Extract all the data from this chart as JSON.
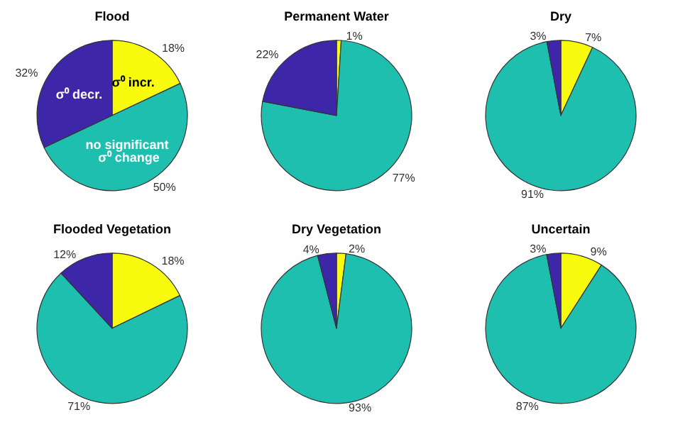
{
  "chart_data": [
    {
      "type": "pie",
      "title": "Flood",
      "categories": [
        "σ⁰ incr.",
        "no significant σ⁰ change",
        "σ⁰ decr."
      ],
      "values": [
        18,
        50,
        32
      ],
      "value_labels": [
        "18%",
        "50%",
        "32%"
      ],
      "colors": [
        "#f9fb0e",
        "#1fbfb0",
        "#3e26a8"
      ]
    },
    {
      "type": "pie",
      "title": "Permanent Water",
      "categories": [
        null,
        null,
        null
      ],
      "values": [
        1,
        77,
        22
      ],
      "value_labels": [
        "1%",
        "77%",
        "22%"
      ],
      "colors": [
        "#f9fb0e",
        "#1fbfb0",
        "#3e26a8"
      ]
    },
    {
      "type": "pie",
      "title": "Dry",
      "categories": [
        null,
        null,
        null
      ],
      "values": [
        7,
        91,
        3
      ],
      "value_labels": [
        "7%",
        "91%",
        "3%"
      ],
      "colors": [
        "#f9fb0e",
        "#1fbfb0",
        "#3e26a8"
      ]
    },
    {
      "type": "pie",
      "title": "Flooded Vegetation",
      "categories": [
        null,
        null,
        null
      ],
      "values": [
        18,
        71,
        12
      ],
      "value_labels": [
        "18%",
        "71%",
        "12%"
      ],
      "colors": [
        "#f9fb0e",
        "#1fbfb0",
        "#3e26a8"
      ]
    },
    {
      "type": "pie",
      "title": "Dry Vegetation",
      "categories": [
        null,
        null,
        null
      ],
      "values": [
        2,
        93,
        4
      ],
      "value_labels": [
        "2%",
        "93%",
        "4%"
      ],
      "colors": [
        "#f9fb0e",
        "#1fbfb0",
        "#3e26a8"
      ]
    },
    {
      "type": "pie",
      "title": "Uncertain",
      "categories": [
        null,
        null,
        null
      ],
      "values": [
        9,
        87,
        3
      ],
      "value_labels": [
        "9%",
        "87%",
        "3%"
      ],
      "colors": [
        "#f9fb0e",
        "#1fbfb0",
        "#3e26a8"
      ]
    }
  ]
}
